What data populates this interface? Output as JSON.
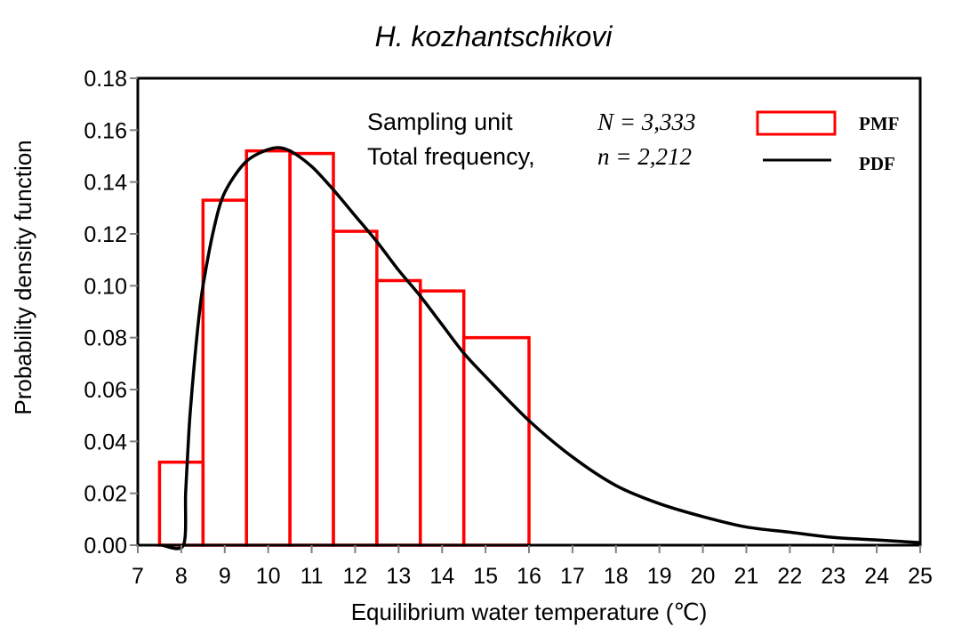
{
  "chart_data": {
    "type": "bar",
    "title": "H. kozhantschikovi",
    "xlabel": "Equilibrium water temperature (℃)",
    "ylabel": "Probability density function",
    "xlim": [
      7,
      25
    ],
    "ylim": [
      0,
      0.18
    ],
    "xticks": [
      "7",
      "8",
      "9",
      "10",
      "11",
      "12",
      "13",
      "14",
      "15",
      "16",
      "17",
      "18",
      "19",
      "20",
      "21",
      "22",
      "23",
      "24",
      "25"
    ],
    "yticks": [
      "0.00",
      "0.02",
      "0.04",
      "0.06",
      "0.08",
      "0.10",
      "0.12",
      "0.14",
      "0.16",
      "0.18"
    ],
    "grid": false,
    "legend_placement": "top-right",
    "annotations": {
      "line1_label": "Sampling unit",
      "line1_value": "N = 3,333",
      "line2_label": "Total frequency,",
      "line2_value": "n = 2,212"
    },
    "series": [
      {
        "name": "PMF",
        "kind": "histogram",
        "color": "#ff0000",
        "bins": [
          {
            "from": 7.5,
            "to": 8.5,
            "value": 0.032
          },
          {
            "from": 8.5,
            "to": 9.5,
            "value": 0.133
          },
          {
            "from": 9.5,
            "to": 10.5,
            "value": 0.152
          },
          {
            "from": 10.5,
            "to": 11.5,
            "value": 0.151
          },
          {
            "from": 11.5,
            "to": 12.5,
            "value": 0.121
          },
          {
            "from": 12.5,
            "to": 13.5,
            "value": 0.102
          },
          {
            "from": 13.5,
            "to": 14.5,
            "value": 0.098
          },
          {
            "from": 14.5,
            "to": 16.0,
            "value": 0.08
          }
        ]
      },
      {
        "name": "PDF",
        "kind": "line",
        "color": "#000000",
        "x": [
          7.55,
          8.05,
          8.1,
          8.15,
          8.2,
          8.3,
          8.4,
          8.5,
          8.75,
          9,
          9.5,
          10.1,
          10.5,
          11,
          11.5,
          12,
          12.5,
          13,
          13.5,
          14,
          14.5,
          15,
          16,
          17,
          18,
          19,
          20,
          21,
          22,
          23,
          24,
          25
        ],
        "y": [
          0,
          0,
          0.02,
          0.036,
          0.05,
          0.07,
          0.087,
          0.1,
          0.122,
          0.136,
          0.148,
          0.153,
          0.152,
          0.146,
          0.137,
          0.127,
          0.117,
          0.106,
          0.096,
          0.085,
          0.074,
          0.065,
          0.048,
          0.034,
          0.023,
          0.016,
          0.011,
          0.007,
          0.005,
          0.003,
          0.002,
          0.001
        ]
      }
    ]
  }
}
